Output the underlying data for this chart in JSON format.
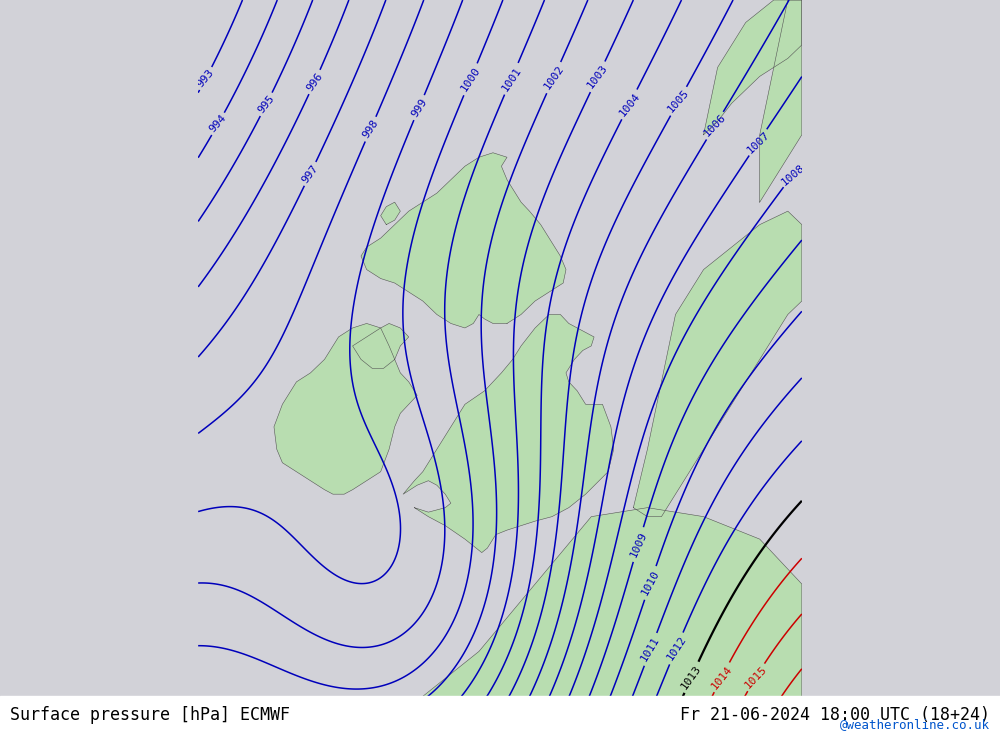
{
  "title_left": "Surface pressure [hPa] ECMWF",
  "title_right": "Fr 21-06-2024 18:00 UTC (18+24)",
  "watermark": "@weatheronline.co.uk",
  "bg_color": "#d2d2d8",
  "land_color": "#b8ddb0",
  "figsize": [
    10.0,
    7.33
  ],
  "dpi": 100,
  "xlim": [
    -13.0,
    8.5
  ],
  "ylim": [
    47.0,
    62.5
  ],
  "blue_contour_color": "#0000bb",
  "black_contour_color": "#000000",
  "red_contour_color": "#cc0000",
  "label_fontsize": 8,
  "title_fontsize": 12,
  "watermark_fontsize": 9,
  "coast_color": "#555555",
  "coast_lw": 0.4
}
